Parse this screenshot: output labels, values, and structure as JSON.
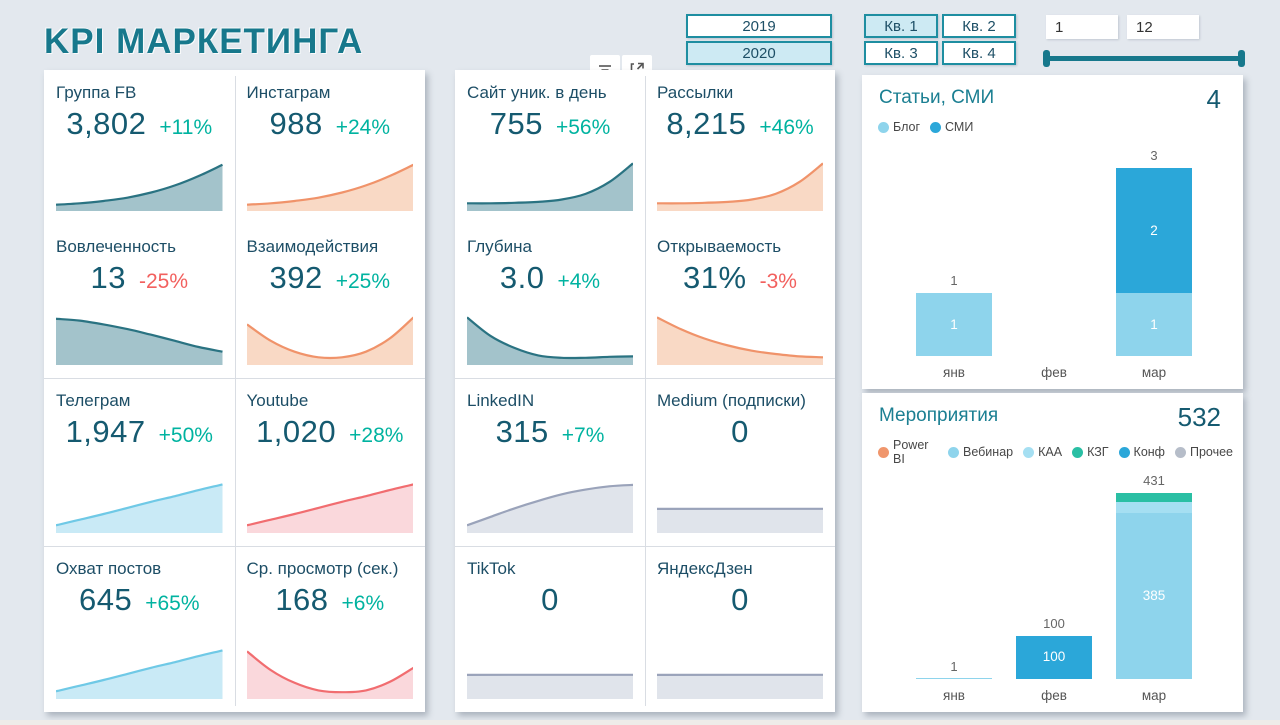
{
  "title": "KPI МАРКЕТИНГА",
  "controls": {
    "years": [
      {
        "label": "2019",
        "selected": false
      },
      {
        "label": "2020",
        "selected": true
      }
    ],
    "quarters": [
      {
        "label": "Кв. 1",
        "selected": true
      },
      {
        "label": "Кв. 2",
        "selected": false
      },
      {
        "label": "Кв. 3",
        "selected": false
      },
      {
        "label": "Кв. 4",
        "selected": false
      }
    ],
    "month_range": {
      "from": "1",
      "to": "12"
    }
  },
  "toolbar": {
    "icons": [
      "filter-icon",
      "focus-mode-icon"
    ]
  },
  "delta_colors": {
    "up": "#00b3a0",
    "down": "#f2605e"
  },
  "palette": {
    "teal": {
      "line": "#2a7382",
      "fill": "#a3c3cb"
    },
    "orange": {
      "line": "#f0936a",
      "fill": "#f9d9c5"
    },
    "lightblue": {
      "line": "#6fc9e6",
      "fill": "#c9eaf6"
    },
    "red": {
      "line": "#f16d70",
      "fill": "#fad8dc"
    },
    "gray": {
      "line": "#9aa3ba",
      "fill": "#e0e4eb"
    }
  },
  "kpi_left": [
    {
      "id": "fb-group",
      "label": "Группа FB",
      "value": "3,802",
      "delta": "+11%",
      "dir": "up",
      "color": "teal",
      "trend": [
        0.07,
        0.1,
        0.15,
        0.22,
        0.33,
        0.48,
        0.68,
        0.92
      ]
    },
    {
      "id": "instagram",
      "label": "Инстаграм",
      "value": "988",
      "delta": "+24%",
      "dir": "up",
      "color": "orange",
      "trend": [
        0.07,
        0.1,
        0.15,
        0.22,
        0.33,
        0.48,
        0.68,
        0.92
      ]
    },
    {
      "id": "engagement",
      "label": "Вовлеченность",
      "value": "13",
      "delta": "-25%",
      "dir": "down",
      "color": "teal",
      "trend": [
        0.92,
        0.88,
        0.8,
        0.7,
        0.58,
        0.45,
        0.32,
        0.22
      ]
    },
    {
      "id": "interactions",
      "label": "Взаимодействия",
      "value": "392",
      "delta": "+25%",
      "dir": "up",
      "color": "orange",
      "trend": [
        0.8,
        0.45,
        0.22,
        0.1,
        0.1,
        0.22,
        0.5,
        0.95
      ]
    },
    {
      "id": "telegram",
      "label": "Телеграм",
      "value": "1,947",
      "delta": "+50%",
      "dir": "up",
      "color": "lightblue",
      "trend": [
        0.1,
        0.22,
        0.34,
        0.47,
        0.6,
        0.72,
        0.85,
        0.97
      ]
    },
    {
      "id": "youtube",
      "label": "Youtube",
      "value": "1,020",
      "delta": "+28%",
      "dir": "up",
      "color": "red",
      "trend": [
        0.1,
        0.22,
        0.34,
        0.47,
        0.6,
        0.72,
        0.85,
        0.97
      ]
    },
    {
      "id": "post-reach",
      "label": "Охват постов",
      "value": "645",
      "delta": "+65%",
      "dir": "up",
      "color": "lightblue",
      "trend": [
        0.1,
        0.22,
        0.34,
        0.47,
        0.6,
        0.72,
        0.85,
        0.97
      ]
    },
    {
      "id": "avg-view-sec",
      "label": "Ср. просмотр (сек.)",
      "value": "168",
      "delta": "+6%",
      "dir": "up",
      "color": "red",
      "trend": [
        0.95,
        0.55,
        0.28,
        0.12,
        0.08,
        0.12,
        0.3,
        0.6
      ]
    }
  ],
  "kpi_middle": [
    {
      "id": "site-uniques",
      "label": "Сайт уник. в день",
      "value": "755",
      "delta": "+56%",
      "dir": "up",
      "color": "teal",
      "trend": [
        0.1,
        0.1,
        0.11,
        0.13,
        0.18,
        0.3,
        0.55,
        0.95
      ]
    },
    {
      "id": "mailings",
      "label": "Рассылки",
      "value": "8,215",
      "delta": "+46%",
      "dir": "up",
      "color": "orange",
      "trend": [
        0.1,
        0.1,
        0.11,
        0.13,
        0.18,
        0.3,
        0.55,
        0.95
      ]
    },
    {
      "id": "depth",
      "label": "Глубина",
      "value": "3.0",
      "delta": "+4%",
      "dir": "up",
      "color": "teal",
      "trend": [
        0.95,
        0.55,
        0.3,
        0.14,
        0.09,
        0.09,
        0.11,
        0.12
      ]
    },
    {
      "id": "open-rate",
      "label": "Открываемость",
      "value": "31%",
      "delta": "-3%",
      "dir": "down",
      "color": "orange",
      "trend": [
        0.95,
        0.7,
        0.5,
        0.35,
        0.24,
        0.17,
        0.12,
        0.1
      ]
    },
    {
      "id": "linkedin",
      "label": "LinkedIN",
      "value": "315",
      "delta": "+7%",
      "dir": "up",
      "color": "gray",
      "trend": [
        0.1,
        0.28,
        0.46,
        0.62,
        0.76,
        0.86,
        0.93,
        0.96
      ]
    },
    {
      "id": "medium-subs",
      "label": "Medium (подписки)",
      "value": "0",
      "delta": "",
      "dir": "up",
      "color": "gray",
      "trend": [
        0.45,
        0.45
      ]
    },
    {
      "id": "tiktok",
      "label": "TikTok",
      "value": "0",
      "delta": "",
      "dir": "up",
      "color": "gray",
      "trend": [
        0.45,
        0.45
      ]
    },
    {
      "id": "yandex-zen",
      "label": "ЯндексДзен",
      "value": "0",
      "delta": "",
      "dir": "up",
      "color": "gray",
      "trend": [
        0.45,
        0.45
      ]
    }
  ],
  "chart_data": [
    {
      "type": "bar",
      "title": "Статьи, СМИ",
      "total": "4",
      "categories": [
        "янв",
        "фев",
        "мар"
      ],
      "series": [
        {
          "name": "Блог",
          "color": "#8ed4ec",
          "values": [
            1,
            0,
            1
          ]
        },
        {
          "name": "СМИ",
          "color": "#2ba7d9",
          "values": [
            0,
            0,
            2
          ]
        }
      ],
      "totals": [
        1,
        0,
        3
      ],
      "ylim": [
        0,
        3
      ],
      "legend_position": "top",
      "grid": false
    },
    {
      "type": "bar",
      "title": "Мероприятия",
      "total": "532",
      "categories": [
        "янв",
        "фев",
        "мар"
      ],
      "series": [
        {
          "name": "Power BI",
          "color": "#f0966c",
          "values": [
            0,
            0,
            0
          ]
        },
        {
          "name": "Вебинар",
          "color": "#8ed4ec",
          "values": [
            1,
            0,
            385
          ]
        },
        {
          "name": "КАА",
          "color": "#a5dff2",
          "values": [
            0,
            0,
            26
          ]
        },
        {
          "name": "КЗГ",
          "color": "#2abfa4",
          "values": [
            0,
            0,
            20
          ]
        },
        {
          "name": "Конф",
          "color": "#2ba7d9",
          "values": [
            0,
            100,
            0
          ]
        },
        {
          "name": "Прочее",
          "color": "#b6bdc9",
          "values": [
            0,
            0,
            0
          ]
        }
      ],
      "totals": [
        1,
        100,
        431
      ],
      "ylim": [
        0,
        431
      ],
      "legend_position": "top",
      "grid": false
    }
  ]
}
